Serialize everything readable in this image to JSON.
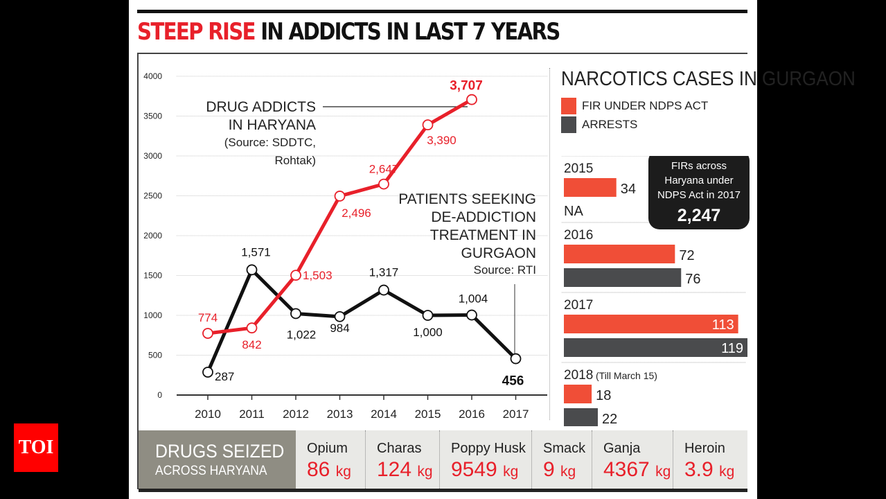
{
  "brand": {
    "logo_text": "TOI",
    "logo_color": "#ff0000"
  },
  "headline": {
    "highlight": "STEEP RISE",
    "rest": " IN ADDICTS IN LAST 7 YEARS"
  },
  "colors": {
    "red": "#e8202a",
    "black": "#111111",
    "fir_bar": "#f04e37",
    "arrest_bar": "#4a4b4d"
  },
  "chart_data": [
    {
      "type": "line",
      "title": "Steep rise in addicts in last 7 years",
      "x": [
        "2010",
        "2011",
        "2012",
        "2013",
        "2014",
        "2015",
        "2016",
        "2017"
      ],
      "ylim": [
        0,
        4000
      ],
      "yticks": [
        0,
        500,
        1000,
        1500,
        2000,
        2500,
        3000,
        3500,
        4000
      ],
      "grid": true,
      "series": [
        {
          "name": "Drug addicts in Haryana",
          "label_lines": [
            "DRUG ADDICTS",
            "IN HARYANA",
            "(Source: SDDTC,",
            "Rohtak)"
          ],
          "color": "#e8202a",
          "x": [
            "2010",
            "2011",
            "2012",
            "2013",
            "2014",
            "2015",
            "2016"
          ],
          "values": [
            774,
            842,
            1503,
            2496,
            2647,
            3390,
            3707
          ],
          "labels": [
            "774",
            "842",
            "1,503",
            "2,496",
            "2,647",
            "3,390",
            "3,707"
          ]
        },
        {
          "name": "Patients seeking de-addiction treatment in Gurgaon",
          "label_lines": [
            "PATIENTS SEEKING",
            "DE-ADDICTION",
            "TREATMENT IN",
            "GURGAON",
            "Source: RTI"
          ],
          "color": "#111111",
          "x": [
            "2010",
            "2011",
            "2012",
            "2013",
            "2014",
            "2015",
            "2016",
            "2017"
          ],
          "values": [
            287,
            1571,
            1022,
            984,
            1317,
            1000,
            1004,
            456
          ],
          "labels": [
            "287",
            "1,571",
            "1,022",
            "984",
            "1,317",
            "1,000",
            "1,004",
            "456"
          ]
        }
      ]
    },
    {
      "type": "bar",
      "title": "NARCOTICS CASES IN GURGAON",
      "orientation": "horizontal",
      "legend": [
        {
          "name": "FIR UNDER NDPS ACT",
          "color": "#f04e37"
        },
        {
          "name": "ARRESTS",
          "color": "#4a4b4d"
        }
      ],
      "groups": [
        {
          "year": "2015",
          "note": "",
          "fir": 34,
          "arrests": null,
          "arrests_label": "NA"
        },
        {
          "year": "2016",
          "note": "",
          "fir": 72,
          "arrests": 76
        },
        {
          "year": "2017",
          "note": "",
          "fir": 113,
          "arrests": 119
        },
        {
          "year": "2018",
          "note": "(Till March 15)",
          "fir": 18,
          "arrests": 22
        }
      ],
      "callout": {
        "lines": [
          "FIRs across",
          "Haryana under",
          "NDPS Act in 2017"
        ],
        "value": "2,247"
      }
    },
    {
      "type": "table",
      "title": "DRUGS SEIZED",
      "subtitle": "ACROSS HARYANA",
      "items": [
        {
          "name": "Opium",
          "value": "86",
          "unit": "kg"
        },
        {
          "name": "Charas",
          "value": "124",
          "unit": "kg"
        },
        {
          "name": "Poppy Husk",
          "value": "9549",
          "unit": "kg"
        },
        {
          "name": "Smack",
          "value": "9",
          "unit": "kg"
        },
        {
          "name": "Ganja",
          "value": "4367",
          "unit": "kg"
        },
        {
          "name": "Heroin",
          "value": "3.9",
          "unit": "kg"
        }
      ]
    }
  ]
}
